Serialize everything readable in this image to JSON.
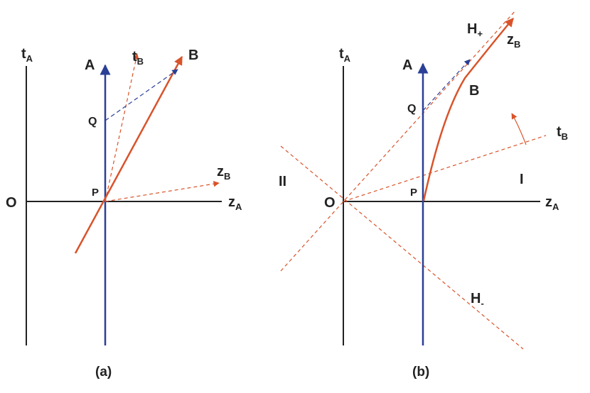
{
  "colors": {
    "axis": "#222222",
    "worldline_a": "#2a3f96",
    "accent": "#d9532a",
    "signal": "#2a3f96"
  },
  "panel_a": {
    "caption": "(a)",
    "t_axis": {
      "base": "t",
      "sub": "A"
    },
    "z_axis": {
      "base": "z",
      "sub": "A"
    },
    "origin": "O",
    "worldline_a": "A",
    "worldline_b": "B",
    "t_b": {
      "base": "t",
      "sub": "B"
    },
    "z_b": {
      "base": "z",
      "sub": "B"
    },
    "point_p": "P",
    "point_q": "Q"
  },
  "panel_b": {
    "caption": "(b)",
    "t_axis": {
      "base": "t",
      "sub": "A"
    },
    "z_axis": {
      "base": "z",
      "sub": "A"
    },
    "origin": "O",
    "worldline_a": "A",
    "worldline_b": "B",
    "t_b": {
      "base": "t",
      "sub": "B"
    },
    "z_b": {
      "base": "z",
      "sub": "B"
    },
    "point_p": "P",
    "point_q": "Q",
    "h_plus": {
      "base": "H",
      "sub": "+"
    },
    "h_minus": {
      "base": "H",
      "sub": "-"
    },
    "region_1": "I",
    "region_2": "II"
  }
}
